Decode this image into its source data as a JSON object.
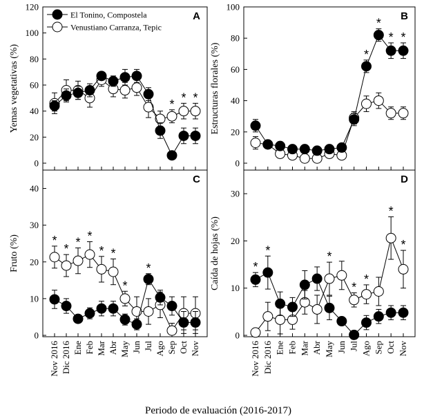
{
  "x_title": "Periodo de evaluación (2016-2017)",
  "legend": [
    {
      "label": "El Tonino, Compostela",
      "marker": "filled"
    },
    {
      "label": "Venustiano Carranza, Tepic",
      "marker": "open"
    }
  ],
  "categories": [
    "Nov 2016",
    "Dic 2016",
    "Ene",
    "Feb",
    "Mar",
    "Abr",
    "May",
    "Jun",
    "Jul",
    "Ago",
    "Sep",
    "Oct",
    "Nov"
  ],
  "star_char": "*",
  "chart_data": [
    {
      "type": "line",
      "letter": "A",
      "ylabel": "Yemas vegetativas (%)",
      "ylim": [
        0,
        120
      ],
      "yticks": [
        0,
        20,
        40,
        60,
        80,
        100,
        120
      ],
      "series": [
        {
          "name": "El Tonino, Compostela",
          "values": [
            44,
            52,
            54,
            56,
            67,
            63,
            66,
            67,
            53,
            25,
            6,
            21,
            21
          ],
          "err": [
            4,
            5,
            5,
            5,
            3,
            4,
            6,
            5,
            5,
            6,
            3,
            6,
            6
          ]
        },
        {
          "name": "Venustiano Carranza, Tepic",
          "values": [
            46,
            56,
            56,
            50,
            64,
            57,
            56,
            58,
            43,
            34,
            36,
            40,
            40
          ],
          "err": [
            8,
            8,
            7,
            7,
            5,
            6,
            6,
            6,
            8,
            6,
            5,
            6,
            6
          ]
        }
      ],
      "stars": [
        10,
        11,
        12
      ]
    },
    {
      "type": "line",
      "letter": "B",
      "ylabel": "Estructuras florales (%)",
      "ylim": [
        0,
        100
      ],
      "yticks": [
        0,
        20,
        40,
        60,
        80,
        100
      ],
      "series": [
        {
          "name": "El Tonino, Compostela",
          "values": [
            24,
            12,
            11,
            9,
            9,
            8,
            9,
            10,
            28,
            62,
            82,
            72,
            72
          ],
          "err": [
            4,
            3,
            3,
            2,
            2,
            2,
            3,
            3,
            4,
            4,
            4,
            5,
            5
          ]
        },
        {
          "name": "Venustiano Carranza, Tepic",
          "values": [
            13,
            12,
            6,
            5,
            3,
            3,
            6,
            5,
            29,
            38,
            40,
            32,
            32
          ],
          "err": [
            4,
            3,
            2,
            2,
            2,
            2,
            2,
            2,
            4,
            5,
            5,
            4,
            4
          ]
        }
      ],
      "stars": [
        9,
        10,
        11,
        12
      ]
    },
    {
      "type": "line",
      "letter": "C",
      "ylabel": "Fruto (%)",
      "ylim": [
        0,
        45
      ],
      "yticks": [
        0,
        10,
        20,
        30,
        40
      ],
      "series": [
        {
          "name": "El Tonino, Compostela",
          "values": [
            9.8,
            8,
            4.5,
            6,
            7.3,
            7.3,
            4.3,
            3,
            15.3,
            10.3,
            8,
            3.5,
            3.5
          ],
          "err": [
            2.5,
            2,
            1.2,
            1.5,
            2,
            2,
            1.5,
            1.5,
            1.5,
            2,
            2.5,
            3,
            3
          ]
        },
        {
          "name": "Venustiano Carranza, Tepic",
          "values": [
            21.3,
            19,
            20.3,
            22,
            18,
            17.3,
            10,
            6.5,
            6.5,
            8.3,
            1.3,
            6,
            6
          ],
          "err": [
            3,
            3,
            3.5,
            3.5,
            3.5,
            3.5,
            2,
            4,
            3.5,
            3.5,
            2,
            4.5,
            4.5
          ]
        }
      ],
      "stars": [
        0,
        1,
        2,
        3,
        4,
        5,
        6,
        8
      ]
    },
    {
      "type": "line",
      "letter": "D",
      "ylabel": "Caída de hojas (%)",
      "ylim": [
        0,
        35
      ],
      "yticks": [
        0,
        10,
        20,
        30
      ],
      "series": [
        {
          "name": "El Tonino, Compostela",
          "values": [
            11.8,
            13.3,
            6.7,
            6,
            10.7,
            12,
            5.8,
            3,
            0.1,
            2.7,
            4,
            4.8,
            4.8
          ],
          "err": [
            1.5,
            3.5,
            2.5,
            2,
            3,
            2.5,
            2.5,
            1,
            0.5,
            1.5,
            1.5,
            1.5,
            1.5
          ]
        },
        {
          "name": "Venustiano Carranza, Tepic",
          "values": [
            0.6,
            4,
            3.3,
            3.3,
            7,
            5.5,
            12,
            12.7,
            7.5,
            8.7,
            9.3,
            20.6,
            14
          ],
          "err": [
            0.5,
            3,
            3,
            2,
            2.5,
            3,
            3.5,
            3,
            1.5,
            2,
            3,
            4.5,
            4
          ]
        }
      ],
      "stars": [
        0,
        1,
        6,
        8,
        9,
        11,
        12
      ]
    }
  ]
}
